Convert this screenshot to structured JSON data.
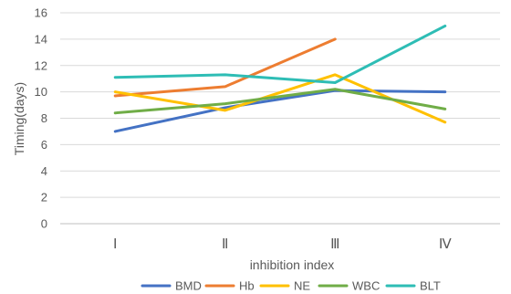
{
  "chart_data": {
    "type": "line",
    "categories": [
      "Ⅰ",
      "Ⅱ",
      "Ⅲ",
      "Ⅳ"
    ],
    "series": [
      {
        "name": "BMD",
        "color": "#4472c4",
        "values": [
          7.0,
          8.8,
          10.1,
          10.0
        ]
      },
      {
        "name": "Hb",
        "color": "#ed7d31",
        "values": [
          9.7,
          10.4,
          14.0,
          null
        ]
      },
      {
        "name": "NE",
        "color": "#ffc000",
        "values": [
          10.0,
          8.6,
          11.3,
          7.7
        ]
      },
      {
        "name": "WBC",
        "color": "#70ad47",
        "values": [
          8.4,
          9.1,
          10.2,
          8.7
        ]
      },
      {
        "name": "BLT",
        "color": "#2ebdb5",
        "values": [
          11.1,
          11.3,
          10.7,
          15.0
        ]
      }
    ],
    "xlabel": "inhibition index",
    "ylabel": "Timing(days)",
    "ylim": [
      0,
      16
    ],
    "yticks": [
      0,
      2,
      4,
      6,
      8,
      10,
      12,
      14,
      16
    ],
    "grid": true,
    "legend": "bottom"
  }
}
